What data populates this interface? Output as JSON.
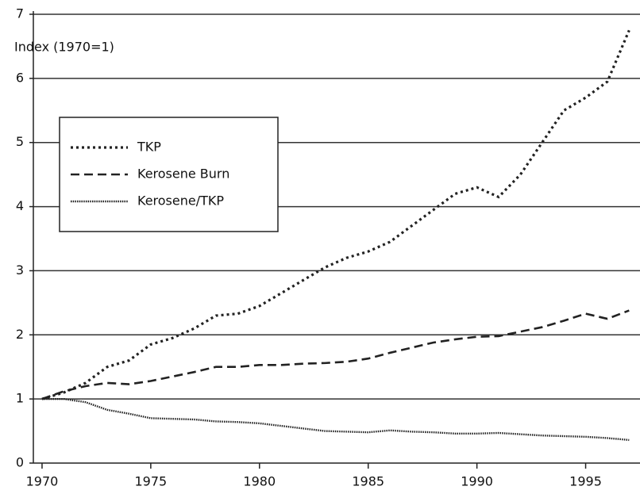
{
  "chart_data": {
    "type": "line",
    "annotation": "Index (1970=1)",
    "x": [
      1970,
      1971,
      1972,
      1973,
      1974,
      1975,
      1976,
      1977,
      1978,
      1979,
      1980,
      1981,
      1982,
      1983,
      1984,
      1985,
      1986,
      1987,
      1988,
      1989,
      1990,
      1991,
      1992,
      1993,
      1994,
      1995,
      1996,
      1997
    ],
    "series": [
      {
        "name": "TKP",
        "color": "#222222",
        "line_style": "dotted",
        "values": [
          1.0,
          1.1,
          1.25,
          1.5,
          1.6,
          1.85,
          1.95,
          2.1,
          2.3,
          2.33,
          2.45,
          2.65,
          2.85,
          3.05,
          3.2,
          3.3,
          3.45,
          3.7,
          3.95,
          4.2,
          4.3,
          4.15,
          4.5,
          5.0,
          5.5,
          5.7,
          5.95,
          6.75
        ]
      },
      {
        "name": "Kerosene Burn",
        "color": "#222222",
        "line_style": "dashed",
        "values": [
          1.0,
          1.12,
          1.2,
          1.25,
          1.23,
          1.28,
          1.35,
          1.42,
          1.5,
          1.5,
          1.53,
          1.53,
          1.55,
          1.56,
          1.58,
          1.63,
          1.72,
          1.8,
          1.88,
          1.93,
          1.97,
          1.98,
          2.05,
          2.12,
          2.22,
          2.33,
          2.25,
          2.38
        ]
      },
      {
        "name": "Kerosene/TKP",
        "color": "#222222",
        "line_style": "densely-dotted",
        "values": [
          1.0,
          1.0,
          0.95,
          0.83,
          0.77,
          0.7,
          0.69,
          0.68,
          0.65,
          0.64,
          0.62,
          0.58,
          0.54,
          0.5,
          0.49,
          0.48,
          0.51,
          0.49,
          0.48,
          0.46,
          0.46,
          0.47,
          0.45,
          0.43,
          0.42,
          0.41,
          0.39,
          0.36
        ]
      }
    ],
    "xlim": [
      1969.6,
      1997.5
    ],
    "xticks": [
      1970,
      1975,
      1980,
      1985,
      1990,
      1995
    ],
    "ylim": [
      0,
      7
    ],
    "yticks": [
      0,
      1,
      2,
      3,
      4,
      5,
      6,
      7
    ],
    "grid": true,
    "legend": "upper left"
  }
}
